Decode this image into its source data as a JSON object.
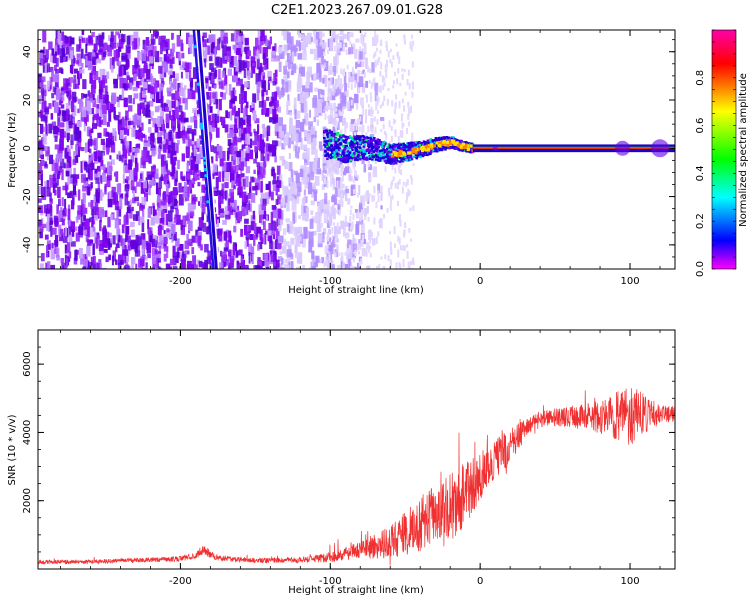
{
  "page": {
    "title": "C2E1.2023.267.09.01.G28"
  },
  "chart_data": [
    {
      "type": "heatmap",
      "xlabel": "Height of straight line (km)",
      "ylabel": "Frequency (Hz)",
      "xlim": [
        -295,
        130
      ],
      "ylim": [
        -50,
        49
      ],
      "xticks": [
        -200,
        -100,
        0,
        100
      ],
      "yticks": [
        -40,
        -20,
        0,
        20,
        40
      ],
      "grid": false,
      "colorbar": {
        "label": "Normalized spectral amplitude",
        "range": [
          0,
          1
        ],
        "ticks": [
          0.0,
          0.2,
          0.4,
          0.6,
          0.8
        ],
        "colormap": "hsv-reversed",
        "colors": [
          "#ff00ff",
          "#ff0000",
          "#ffff00",
          "#00ff00",
          "#00ffff",
          "#0000ff",
          "#ff00ff"
        ]
      },
      "tone_track": {
        "description_visible": false,
        "x": [
          -100,
          -90,
          -80,
          -70,
          -60,
          -50,
          -40,
          -30,
          -20,
          -10,
          0,
          40,
          80,
          130
        ],
        "y": [
          2,
          0,
          1,
          0,
          -2,
          -1,
          0,
          2,
          3,
          1,
          0,
          0,
          0,
          0
        ]
      },
      "noise_region_xlim": [
        -295,
        -105
      ],
      "diagonal_trace": {
        "x": [
          -191,
          -178
        ],
        "y": [
          49,
          -50
        ]
      },
      "secondary_trace": {
        "x": [
          -188,
          -176
        ],
        "y": [
          49,
          -50
        ]
      }
    },
    {
      "type": "line",
      "xlabel": "Height of straight line (km)",
      "ylabel": "SNR (10 * v/v)",
      "xlim": [
        -295,
        130
      ],
      "ylim": [
        0,
        7000
      ],
      "xticks": [
        -200,
        -100,
        0,
        100
      ],
      "yticks": [
        2000,
        4000,
        6000
      ],
      "grid": false,
      "series": [
        {
          "color": "#f03030",
          "x": [
            -295,
            -260,
            -230,
            -200,
            -190,
            -185,
            -175,
            -150,
            -120,
            -100,
            -80,
            -60,
            -40,
            -20,
            -10,
            0,
            10,
            20,
            30,
            40,
            60,
            80,
            100,
            120,
            130
          ],
          "y": [
            200,
            220,
            260,
            300,
            380,
            550,
            320,
            250,
            260,
            350,
            550,
            800,
            1300,
            1800,
            2200,
            2700,
            3200,
            3600,
            4100,
            4400,
            4450,
            4450,
            4500,
            4550,
            4550
          ],
          "noise_amplitude": [
            60,
            60,
            70,
            80,
            90,
            150,
            80,
            70,
            80,
            150,
            250,
            500,
            800,
            1000,
            1000,
            700,
            600,
            500,
            300,
            250,
            300,
            500,
            900,
            300,
            250
          ]
        }
      ]
    }
  ]
}
